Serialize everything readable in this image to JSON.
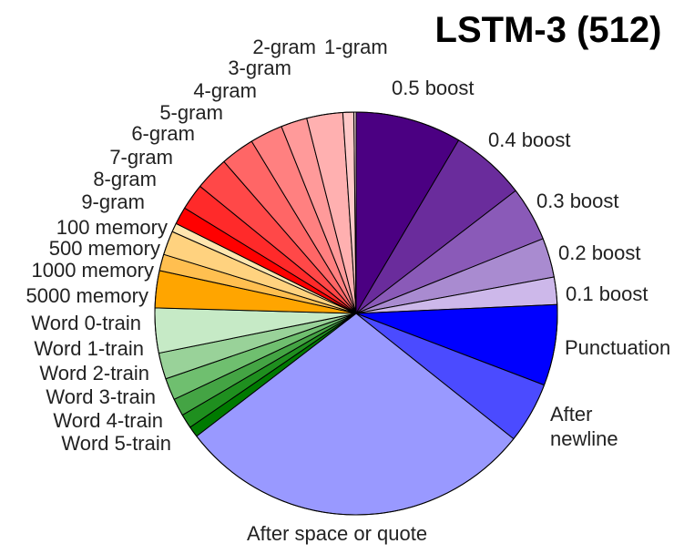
{
  "chart_data": {
    "type": "pie",
    "title": "LSTM-3 (512)",
    "start": "top",
    "direction": "clockwise",
    "slices": [
      {
        "label": "0.5 boost",
        "value": 9.7,
        "color": "#4b0082"
      },
      {
        "label": "0.4 boost",
        "value": 6.9,
        "color": "#6a2c9c"
      },
      {
        "label": "0.3 boost",
        "value": 5.0,
        "color": "#8a5ab8"
      },
      {
        "label": "0.2 boost",
        "value": 3.6,
        "color": "#a98bd0"
      },
      {
        "label": "0.1 boost",
        "value": 2.5,
        "color": "#cdb8ea"
      },
      {
        "label": "Punctuation",
        "value": 7.4,
        "color": "#0000ff"
      },
      {
        "label": "After\nnewline",
        "value": 5.6,
        "color": "#4b4bff"
      },
      {
        "label": "After space or quote",
        "value": 32.9,
        "color": "#9999ff"
      },
      {
        "label": "Word 5-train",
        "value": 1.0,
        "color": "#007a00"
      },
      {
        "label": "Word 4-train",
        "value": 1.3,
        "color": "#1f8f1f"
      },
      {
        "label": "Word 3-train",
        "value": 1.6,
        "color": "#44a444"
      },
      {
        "label": "Word 2-train",
        "value": 2.0,
        "color": "#6fbf6f"
      },
      {
        "label": "Word 1-train",
        "value": 2.4,
        "color": "#99d299"
      },
      {
        "label": "Word 0-train",
        "value": 4.1,
        "color": "#c6eac6"
      },
      {
        "label": "5000 memory",
        "value": 3.4,
        "color": "#ffa500"
      },
      {
        "label": "1000 memory",
        "value": 1.5,
        "color": "#ffbf50"
      },
      {
        "label": "500 memory",
        "value": 2.2,
        "color": "#ffd27f"
      },
      {
        "label": "100 memory",
        "value": 0.8,
        "color": "#ffe6b0"
      },
      {
        "label": "9-gram",
        "value": 1.6,
        "color": "#ff0000"
      },
      {
        "label": "8-gram",
        "value": 2.4,
        "color": "#ff2a2a"
      },
      {
        "label": "7-gram",
        "value": 3.1,
        "color": "#ff4848"
      },
      {
        "label": "6-gram",
        "value": 3.1,
        "color": "#ff6666"
      },
      {
        "label": "5-gram",
        "value": 3.0,
        "color": "#ff8080"
      },
      {
        "label": "4-gram",
        "value": 2.4,
        "color": "#ff9a9a"
      },
      {
        "label": "3-gram",
        "value": 3.3,
        "color": "#ffb0b0"
      },
      {
        "label": "2-gram",
        "value": 1.0,
        "color": "#ffc8c8"
      },
      {
        "label": "1-gram",
        "value": 0.2,
        "color": "#ffe0e0"
      }
    ]
  }
}
